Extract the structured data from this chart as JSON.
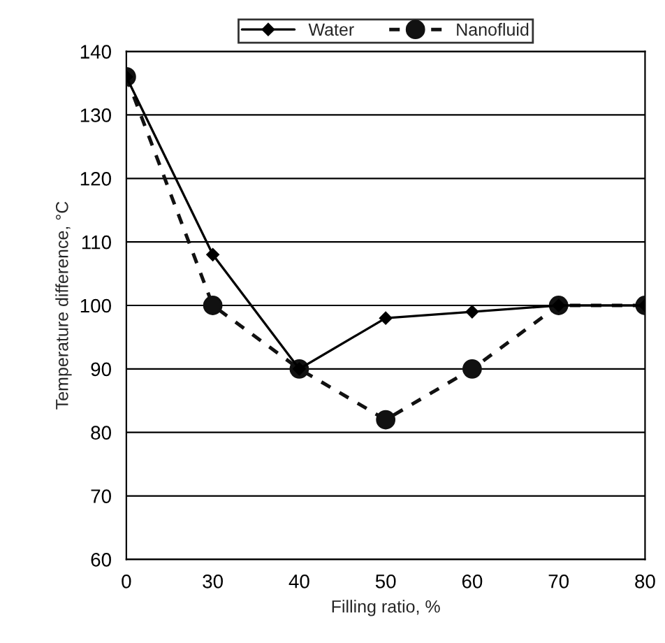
{
  "chart_data": {
    "type": "line",
    "xlabel": "Filling ratio, %",
    "ylabel": "Temperature difference, °C",
    "categories": [
      "0",
      "30",
      "40",
      "50",
      "60",
      "70",
      "80"
    ],
    "series": [
      {
        "name": "Water",
        "color": "#000000",
        "values": [
          136,
          108,
          90,
          98,
          99,
          100,
          100
        ],
        "marker": "diamond",
        "line_style": "solid"
      },
      {
        "name": "Nanofluid",
        "color": "#111111",
        "values": [
          136,
          100,
          90,
          82,
          90,
          100,
          100
        ],
        "marker": "circle",
        "line_style": "dashed"
      }
    ],
    "ylim": [
      60,
      140
    ],
    "yticks": [
      60,
      70,
      80,
      90,
      100,
      110,
      120,
      130,
      140
    ],
    "grid": "y",
    "legend": "top"
  }
}
